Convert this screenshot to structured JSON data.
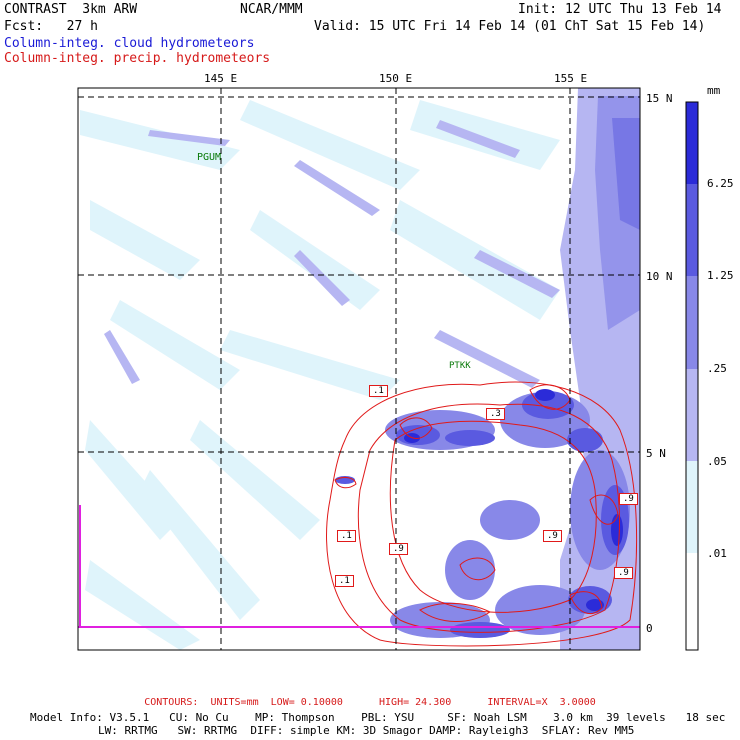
{
  "header": {
    "model": "CONTRAST  3km ARW",
    "org": "NCAR/MMM",
    "init": "Init: 12 UTC Thu 13 Feb 14",
    "fcst": "Fcst:   27 h",
    "valid": "Valid: 15 UTC Fri 14 Feb 14 (01 ChT Sat 15 Feb 14)",
    "field1": "Column-integ. cloud hydrometeors",
    "field2": "Column-integ. precip. hydrometeors"
  },
  "map": {
    "lon_labels": [
      "145 E",
      "150 E",
      "155 E"
    ],
    "lat_labels": [
      "15 N",
      "10 N",
      "5 N",
      "0"
    ],
    "stations": [
      "PGUM",
      "PTKK"
    ],
    "contour_labels": [
      ".1",
      ".3",
      ".1",
      ".1",
      ".9",
      ".9",
      ".9",
      ".9"
    ]
  },
  "colorbar": {
    "units": "mm",
    "levels": [
      "6.25",
      "1.25",
      ".25",
      ".05",
      ".01"
    ],
    "colors": [
      "#2b2bd8",
      "#5a5ae0",
      "#8888e8",
      "#b6b6f2",
      "#dff4fb",
      "#ffffff"
    ]
  },
  "footer": {
    "contours": "CONTOURS:  UNITS=mm  LOW= 0.10000      HIGH= 24.300      INTERVAL=X  3.0000",
    "line1": "Model Info: V3.5.1   CU: No Cu    MP: Thompson    PBL: YSU     SF: Noah LSM    3.0 km  39 levels   18 sec",
    "line2": "LW: RRTMG   SW: RRTMG  DIFF: simple KM: 3D Smagor DAMP: Rayleigh3  SFLAY: Rev MM5"
  }
}
